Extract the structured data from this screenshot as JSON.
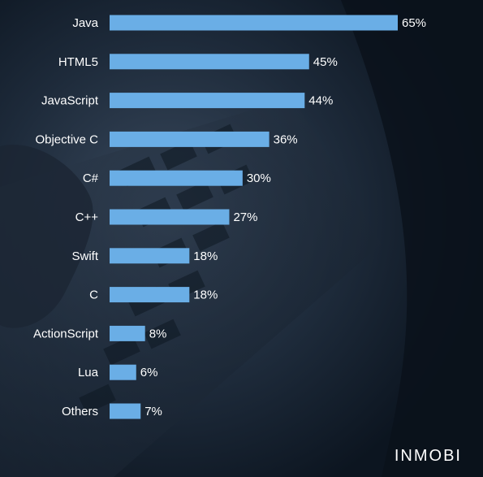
{
  "brand": {
    "logo_text": "INMOBI"
  },
  "colors": {
    "bar": "#6aaee6",
    "text": "#ffffff",
    "background": "#0f1a27"
  },
  "chart_data": {
    "type": "bar",
    "orientation": "horizontal",
    "categories": [
      "Java",
      "HTML5",
      "JavaScript",
      "Objective C",
      "C#",
      "C++",
      "Swift",
      "C",
      "ActionScript",
      "Lua",
      "Others"
    ],
    "values": [
      65,
      45,
      44,
      36,
      30,
      27,
      18,
      18,
      8,
      6,
      7
    ],
    "value_labels": [
      "65%",
      "45%",
      "44%",
      "36%",
      "30%",
      "27%",
      "18%",
      "18%",
      "8%",
      "6%",
      "7%"
    ],
    "xlim": [
      0,
      65
    ],
    "grid": false,
    "legend": "none"
  }
}
